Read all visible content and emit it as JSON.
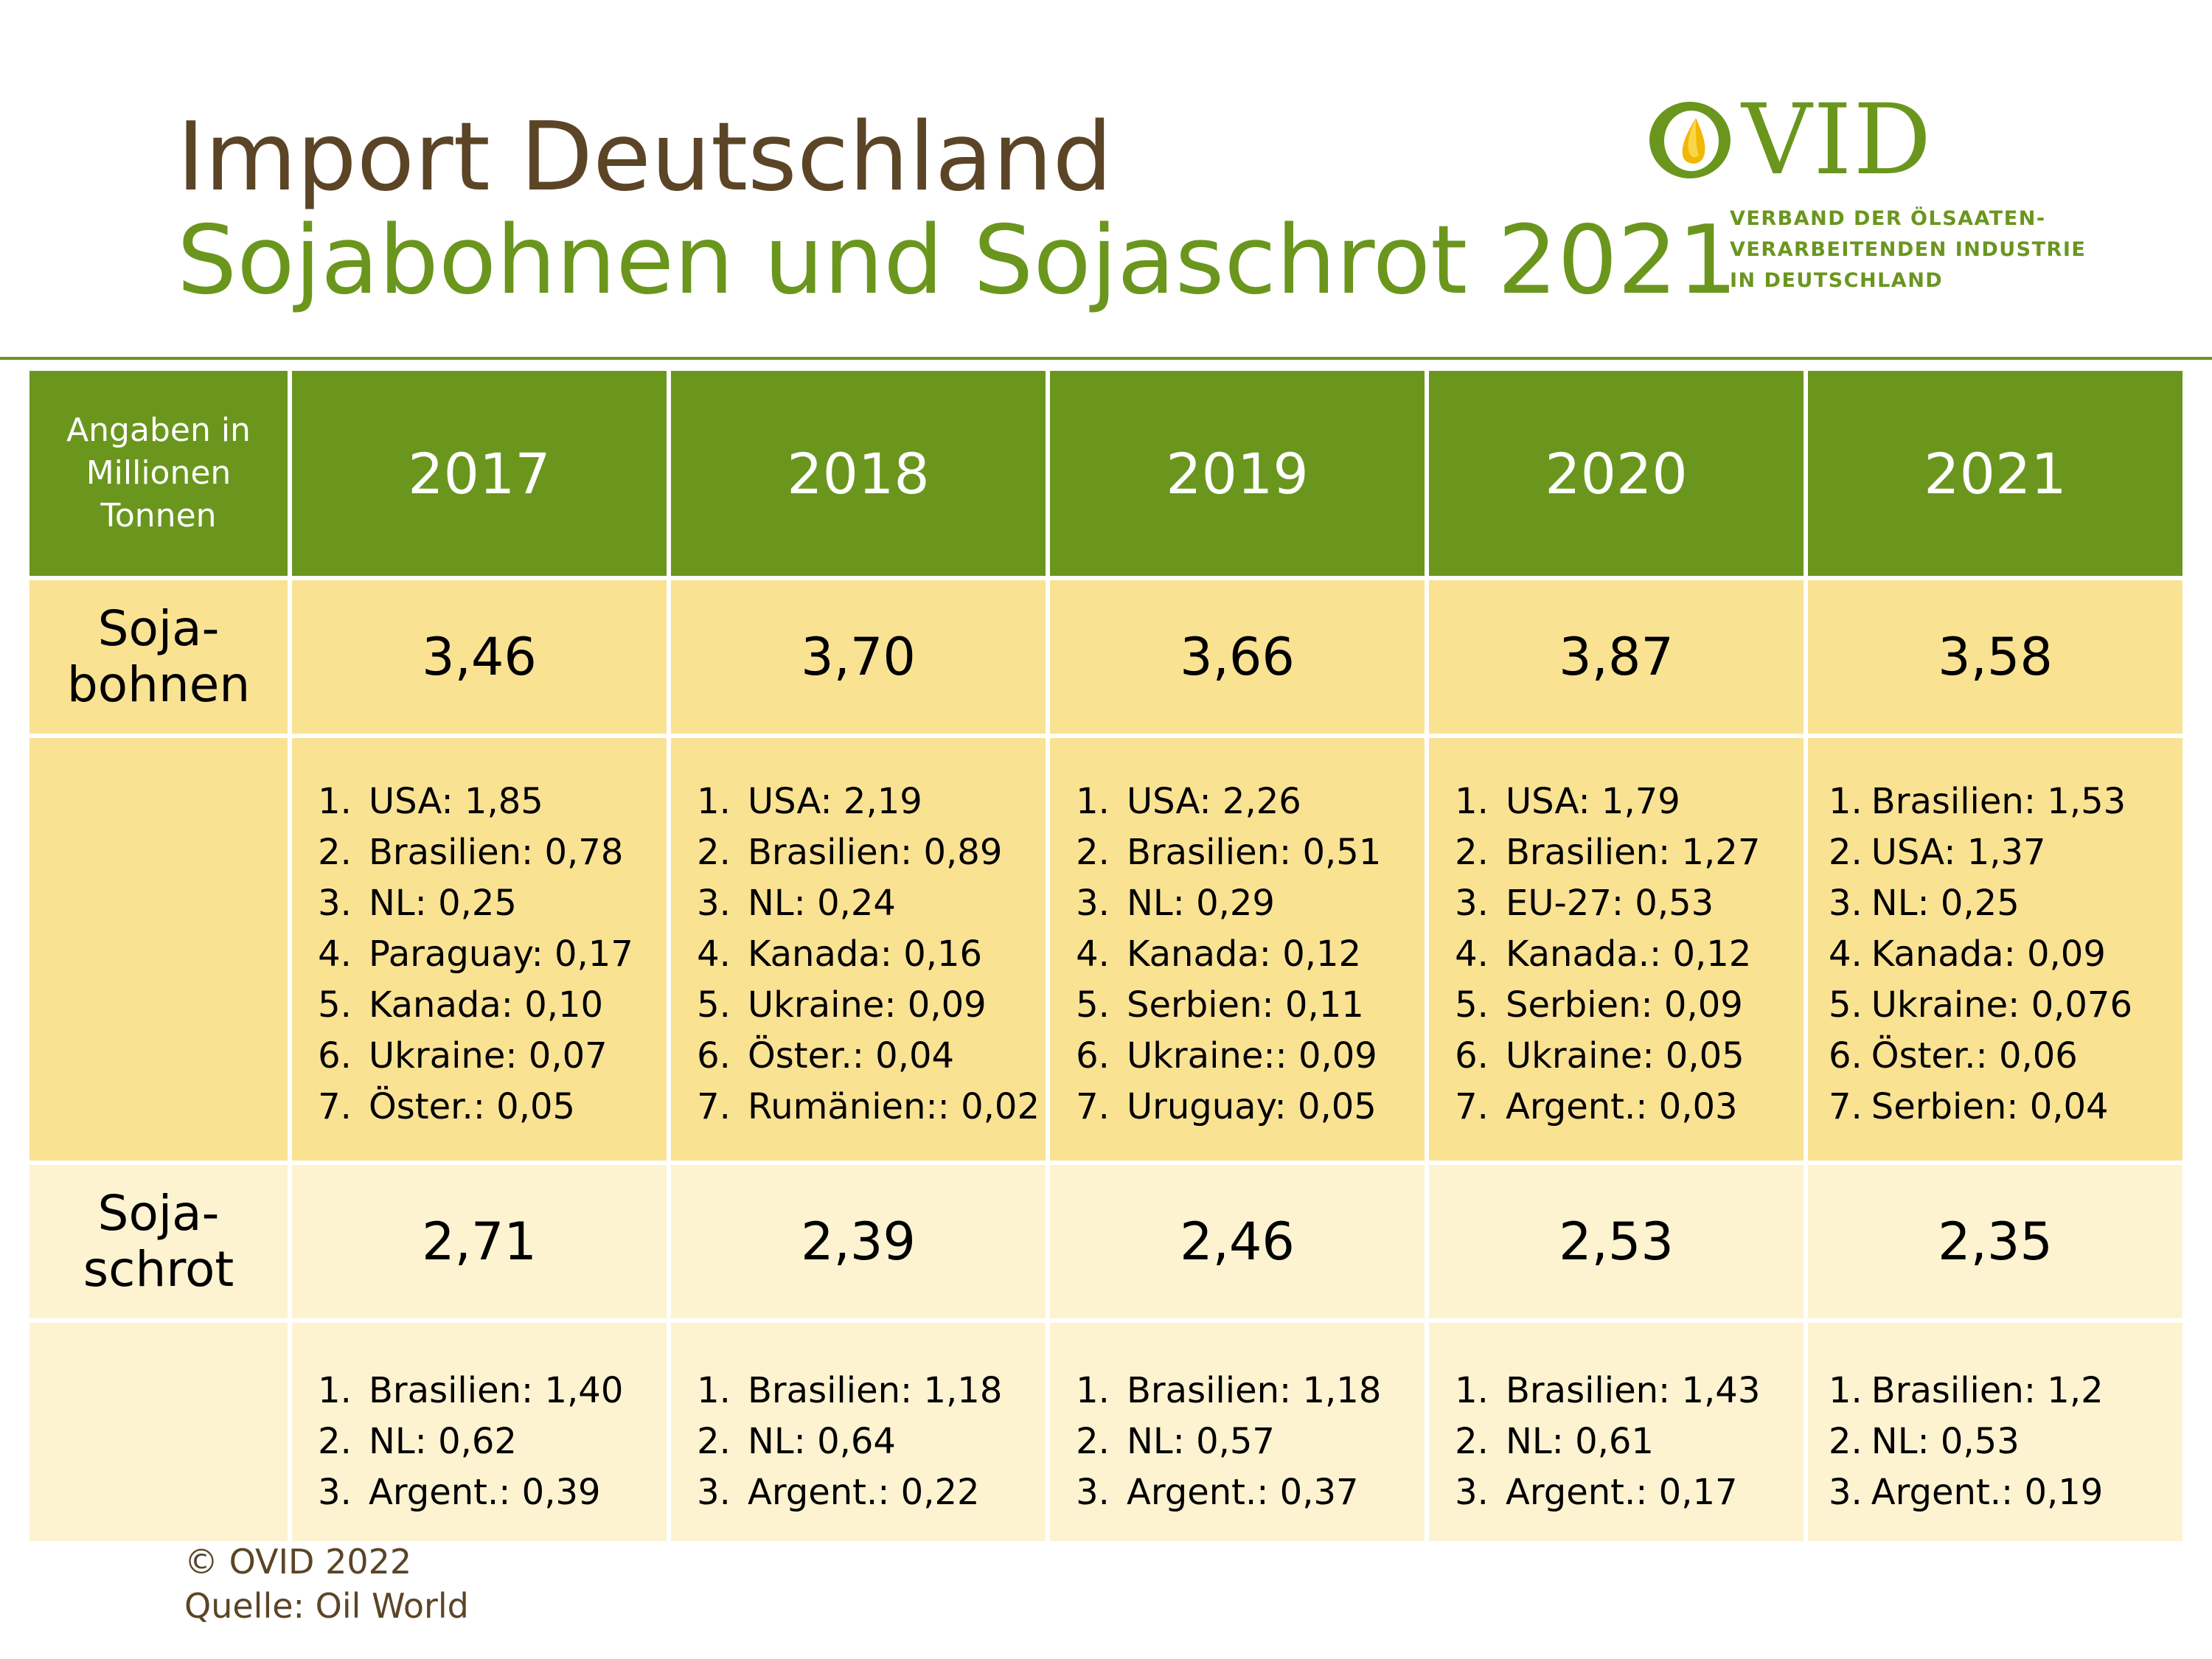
{
  "title": {
    "line1": "Import Deutschland",
    "line2": "Sojabohnen und Sojaschrot 2021"
  },
  "logo": {
    "name": "OVID",
    "subtitle": [
      "VERBAND DER ÖLSAATEN-",
      "VERARBEITENDEN INDUSTRIE",
      "IN DEUTSCHLAND"
    ]
  },
  "colors": {
    "header_green": "#6a961e",
    "title_brown": "#5b4526",
    "soybean_yellow": "#fae293",
    "meal_cream": "#fdf3d1"
  },
  "table": {
    "unit_label": [
      "Angaben in",
      "Millionen",
      "Tonnen"
    ],
    "years": [
      "2017",
      "2018",
      "2019",
      "2020",
      "2021"
    ],
    "soybeans": {
      "label": [
        "Soja-",
        "bohnen"
      ],
      "totals": [
        "3,46",
        "3,70",
        "3,66",
        "3,87",
        "3,58"
      ],
      "origins": [
        [
          {
            "n": "1.",
            "t": "USA: 1,85"
          },
          {
            "n": "2.",
            "t": "Brasilien: 0,78"
          },
          {
            "n": "3.",
            "t": "NL: 0,25"
          },
          {
            "n": "4.",
            "t": "Paraguay: 0,17"
          },
          {
            "n": "5.",
            "t": "Kanada: 0,10"
          },
          {
            "n": "6.",
            "t": "Ukraine: 0,07"
          },
          {
            "n": "7.",
            "t": "Öster.: 0,05"
          }
        ],
        [
          {
            "n": "1.",
            "t": "USA: 2,19"
          },
          {
            "n": "2.",
            "t": "Brasilien: 0,89"
          },
          {
            "n": "3.",
            "t": "NL: 0,24"
          },
          {
            "n": "4.",
            "t": "Kanada: 0,16"
          },
          {
            "n": "5.",
            "t": "Ukraine: 0,09"
          },
          {
            "n": "6.",
            "t": "Öster.: 0,04"
          },
          {
            "n": "7.",
            "t": "Rumänien:: 0,02"
          }
        ],
        [
          {
            "n": "1.",
            "t": "USA: 2,26"
          },
          {
            "n": "2.",
            "t": "Brasilien: 0,51"
          },
          {
            "n": "3.",
            "t": "NL: 0,29"
          },
          {
            "n": "4.",
            "t": "Kanada: 0,12"
          },
          {
            "n": "5.",
            "t": "Serbien: 0,11"
          },
          {
            "n": "6.",
            "t": "Ukraine:: 0,09"
          },
          {
            "n": "7.",
            "t": "Uruguay: 0,05"
          }
        ],
        [
          {
            "n": "1.",
            "t": "USA: 1,79"
          },
          {
            "n": "2.",
            "t": "Brasilien: 1,27"
          },
          {
            "n": "3.",
            "t": "EU-27: 0,53"
          },
          {
            "n": "4.",
            "t": "Kanada.: 0,12"
          },
          {
            "n": "5.",
            "t": "Serbien: 0,09"
          },
          {
            "n": "6.",
            "t": "Ukraine: 0,05"
          },
          {
            "n": "7.",
            "t": "Argent.: 0,03"
          }
        ],
        [
          {
            "n": "1.",
            "t": "Brasilien: 1,53"
          },
          {
            "n": "2.",
            "t": "USA: 1,37"
          },
          {
            "n": "3.",
            "t": "NL: 0,25"
          },
          {
            "n": "4.",
            "t": "Kanada: 0,09"
          },
          {
            "n": "5.",
            "t": "Ukraine: 0,076"
          },
          {
            "n": "6.",
            "t": "Öster.: 0,06"
          },
          {
            "n": "7.",
            "t": "Serbien: 0,04"
          }
        ]
      ]
    },
    "soymeal": {
      "label": [
        "Soja-",
        "schrot"
      ],
      "totals": [
        "2,71",
        "2,39",
        "2,46",
        "2,53",
        "2,35"
      ],
      "origins": [
        [
          {
            "n": "1.",
            "t": "Brasilien: 1,40"
          },
          {
            "n": "2.",
            "t": "NL: 0,62"
          },
          {
            "n": "3.",
            "t": "Argent.: 0,39"
          }
        ],
        [
          {
            "n": "1.",
            "t": "Brasilien: 1,18"
          },
          {
            "n": "2.",
            "t": "NL: 0,64"
          },
          {
            "n": "3.",
            "t": "Argent.: 0,22"
          }
        ],
        [
          {
            "n": "1.",
            "t": "Brasilien: 1,18"
          },
          {
            "n": "2.",
            "t": "NL: 0,57"
          },
          {
            "n": "3.",
            "t": "Argent.: 0,37"
          }
        ],
        [
          {
            "n": "1.",
            "t": "Brasilien: 1,43"
          },
          {
            "n": "2.",
            "t": "NL: 0,61"
          },
          {
            "n": "3.",
            "t": "Argent.: 0,17"
          }
        ],
        [
          {
            "n": "1.",
            "t": "Brasilien: 1,2"
          },
          {
            "n": "2.",
            "t": "NL: 0,53"
          },
          {
            "n": "3.",
            "t": "Argent.: 0,19"
          }
        ]
      ]
    }
  },
  "footer": {
    "copyright": "© OVID 2022",
    "source": "Quelle: Oil World"
  }
}
